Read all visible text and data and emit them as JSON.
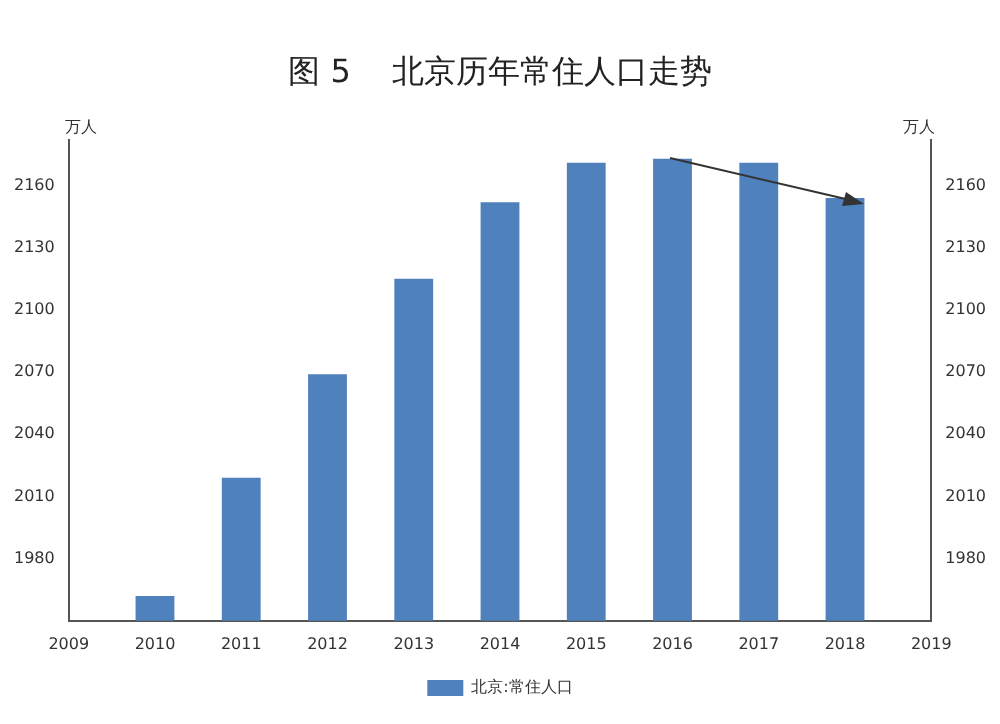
{
  "chart_data": {
    "type": "bar",
    "title": "图 5    北京历年常住人口走势",
    "x": [
      2010,
      2011,
      2012,
      2013,
      2014,
      2015,
      2016,
      2017,
      2018
    ],
    "series": [
      {
        "name": "北京:常住人口",
        "color": "#4f81bd",
        "values": [
          1962,
          2019,
          2069,
          2115,
          2152,
          2171,
          2173,
          2171,
          2154
        ]
      }
    ],
    "xlim": [
      2009,
      2019
    ],
    "xticks": [
      2009,
      2010,
      2011,
      2012,
      2013,
      2014,
      2015,
      2016,
      2017,
      2018,
      2019
    ],
    "ylim": [
      1950,
      2182
    ],
    "yticks": [
      1980,
      2010,
      2040,
      2070,
      2100,
      2130,
      2160
    ],
    "y2lim": [
      1950,
      2182
    ],
    "y2ticks": [
      1980,
      2010,
      2040,
      2070,
      2100,
      2130,
      2160
    ],
    "ylabel": "万人",
    "y2label": "万人",
    "grid": false,
    "legend": "bottom"
  }
}
